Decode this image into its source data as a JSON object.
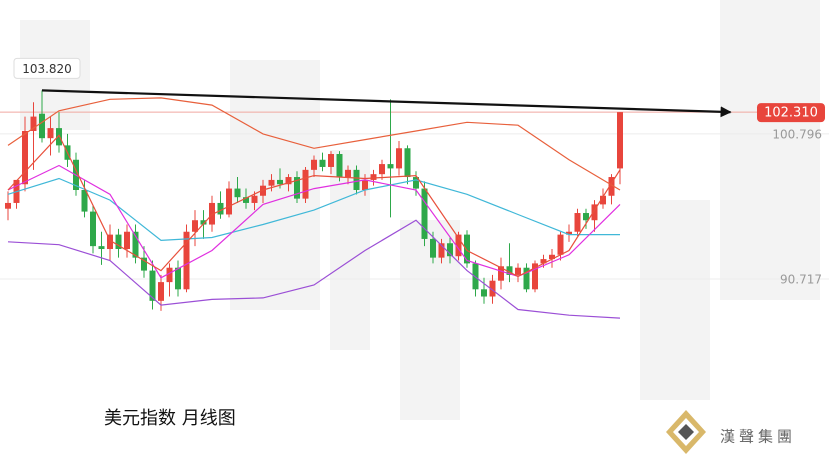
{
  "chart_data": {
    "type": "candlestick",
    "title": "美元指数 月线图",
    "logo_text": "漢聲集團",
    "ylim": [
      78.35,
      110.1
    ],
    "yticks": [
      100.796,
      90.717
    ],
    "high_label": {
      "value": 103.82,
      "label": "103.820"
    },
    "last_price": {
      "value": 102.31,
      "label": "102.310"
    },
    "up_color": "#e8453c",
    "down_color": "#2ea84a",
    "open": [
      95.6,
      96.0,
      97.3,
      101.0,
      102.2,
      100.5,
      101.2,
      100.0,
      99.0,
      96.9,
      95.4,
      93.0,
      92.8,
      93.8,
      92.8,
      94.0,
      92.2,
      91.3,
      89.2,
      90.5,
      91.5,
      90.0,
      94.0,
      94.8,
      94.5,
      96.0,
      95.2,
      97.0,
      96.4,
      96.0,
      96.5,
      97.2,
      97.6,
      97.3,
      97.8,
      96.3,
      98.3,
      99.0,
      98.5,
      99.4,
      97.8,
      98.3,
      96.9,
      97.6,
      98.0,
      98.7,
      98.4,
      99.8,
      97.8,
      97.0,
      93.5,
      92.2,
      93.2,
      92.3,
      93.8,
      91.8,
      90.0,
      89.5,
      90.6,
      91.6,
      91.0,
      91.5,
      90.0,
      91.8,
      92.1,
      92.4,
      93.8,
      94.0,
      95.3,
      94.8,
      95.9,
      96.5,
      98.4
    ],
    "high": [
      96.8,
      97.5,
      102.0,
      103.0,
      103.82,
      102.0,
      102.3,
      100.8,
      99.5,
      97.6,
      95.8,
      94.0,
      94.5,
      94.2,
      94.5,
      94.5,
      93.0,
      92.0,
      91.0,
      91.8,
      92.0,
      94.5,
      95.5,
      95.5,
      96.5,
      96.8,
      97.5,
      97.8,
      97.0,
      96.8,
      97.6,
      98.0,
      98.4,
      98.0,
      98.2,
      98.5,
      99.3,
      99.5,
      99.6,
      99.6,
      98.6,
      98.6,
      98.0,
      98.3,
      99.0,
      103.2,
      100.3,
      100.0,
      98.2,
      97.5,
      94.0,
      93.5,
      93.6,
      94.0,
      94.1,
      92.0,
      90.8,
      91.0,
      92.2,
      93.2,
      91.8,
      91.8,
      92.0,
      92.4,
      92.8,
      94.0,
      94.5,
      95.6,
      95.6,
      96.2,
      97.0,
      98.0,
      102.31
    ],
    "low": [
      94.8,
      95.6,
      96.8,
      98.3,
      100.2,
      99.3,
      99.5,
      98.5,
      96.5,
      95.0,
      92.5,
      91.7,
      92.0,
      92.2,
      92.2,
      91.8,
      90.8,
      88.6,
      88.5,
      89.5,
      89.5,
      89.8,
      93.0,
      93.5,
      94.0,
      94.9,
      95.0,
      96.0,
      95.6,
      95.5,
      96.0,
      96.8,
      97.0,
      96.8,
      96.0,
      96.0,
      97.8,
      98.2,
      98.0,
      97.5,
      97.3,
      96.6,
      96.5,
      97.2,
      97.6,
      95.0,
      97.9,
      97.3,
      96.5,
      93.0,
      91.8,
      91.8,
      91.8,
      92.0,
      91.5,
      89.5,
      89.0,
      89.0,
      90.0,
      90.5,
      90.5,
      89.8,
      89.8,
      91.5,
      91.5,
      92.0,
      93.3,
      93.7,
      94.2,
      94.0,
      95.6,
      95.9,
      97.3
    ],
    "close": [
      96.0,
      97.6,
      101.0,
      102.0,
      100.5,
      101.2,
      100.0,
      99.0,
      96.9,
      95.4,
      93.0,
      92.8,
      93.8,
      92.8,
      94.0,
      92.2,
      91.3,
      89.2,
      90.5,
      91.5,
      90.0,
      94.0,
      94.8,
      94.5,
      96.0,
      95.2,
      97.0,
      96.4,
      96.0,
      96.5,
      97.2,
      97.6,
      97.3,
      97.8,
      96.3,
      98.3,
      99.0,
      98.5,
      99.4,
      97.8,
      98.3,
      96.9,
      97.6,
      98.0,
      98.7,
      98.4,
      99.8,
      97.8,
      97.0,
      93.5,
      92.2,
      93.2,
      92.3,
      93.8,
      91.8,
      90.0,
      89.5,
      90.6,
      91.6,
      91.0,
      91.5,
      90.0,
      91.8,
      92.1,
      92.4,
      93.8,
      94.0,
      95.3,
      94.8,
      95.9,
      96.5,
      97.8,
      102.31
    ],
    "indicators": [
      {
        "color": "#e8603c",
        "x": [
          0,
          6,
          12,
          18,
          24,
          30,
          36,
          42,
          48,
          54,
          60,
          66,
          72
        ],
        "values": [
          100.0,
          102.4,
          103.2,
          103.3,
          102.8,
          100.8,
          99.8,
          100.4,
          101.0,
          101.6,
          101.4,
          99.0,
          96.9
        ]
      },
      {
        "color": "#40b8d8",
        "x": [
          0,
          6,
          12,
          18,
          24,
          30,
          36,
          42,
          48,
          54,
          60,
          66,
          72
        ],
        "values": [
          96.6,
          97.7,
          96.2,
          93.4,
          93.6,
          94.5,
          95.5,
          96.9,
          97.6,
          96.6,
          95.2,
          93.8,
          93.8
        ]
      },
      {
        "color": "#9b4fd6",
        "x": [
          0,
          6,
          12,
          18,
          24,
          30,
          36,
          42,
          48,
          54,
          60,
          66,
          72
        ],
        "values": [
          93.3,
          93.1,
          92.0,
          88.9,
          89.3,
          89.4,
          90.3,
          92.7,
          94.8,
          91.3,
          88.6,
          88.2,
          88.0
        ]
      },
      {
        "color": "#e030e0",
        "x": [
          0,
          6,
          12,
          18,
          24,
          30,
          36,
          42,
          48,
          54,
          60,
          66,
          72
        ],
        "values": [
          96.9,
          98.6,
          96.6,
          90.8,
          92.7,
          95.9,
          97.0,
          97.6,
          96.9,
          92.0,
          90.9,
          92.4,
          95.9
        ]
      },
      {
        "color": "#e8503c",
        "x": [
          0,
          6,
          12,
          18,
          24,
          30,
          36,
          42,
          48,
          54,
          60,
          66,
          72
        ],
        "values": [
          96.9,
          100.7,
          93.4,
          91.3,
          95.2,
          96.9,
          97.9,
          97.7,
          97.9,
          92.7,
          90.9,
          92.7,
          98.3
        ]
      }
    ],
    "trendline": {
      "color": "#111111",
      "x": [
        4,
        85
      ],
      "values": [
        103.82,
        102.31
      ]
    }
  }
}
